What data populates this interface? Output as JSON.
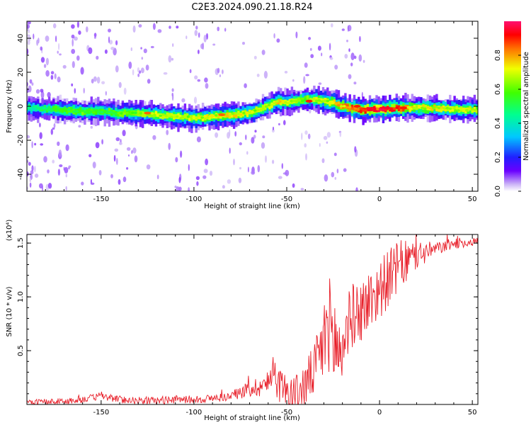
{
  "figure": {
    "title": "C2E3.2024.090.21.18.R24",
    "colors": {
      "snr_line": "#e8202a",
      "axis": "#000000"
    }
  },
  "chart_data": [
    {
      "type": "heatmap",
      "name": "spectrogram",
      "xlabel": "Height of straight line (km)",
      "ylabel": "Frequency (Hz)",
      "xlim": [
        -190,
        53
      ],
      "ylim": [
        -50,
        50
      ],
      "x_ticks": [
        -150,
        -100,
        -50,
        0,
        50
      ],
      "y_ticks": [
        -40,
        -20,
        0,
        20,
        40
      ],
      "colorbar": {
        "label": "Normalized spectral amplitude",
        "range": [
          0,
          1
        ],
        "ticks": [
          0.0,
          0.2,
          0.4,
          0.6,
          0.8
        ],
        "tick_labels": [
          "0.0",
          "0.2",
          "0.4",
          "0.6",
          "0.8"
        ]
      },
      "ridge": {
        "x": [
          -188,
          -175,
          -160,
          -150,
          -140,
          -130,
          -120,
          -110,
          -100,
          -90,
          -80,
          -70,
          -60,
          -55,
          -50,
          -45,
          -40,
          -35,
          -30,
          -25,
          -20,
          -10,
          0,
          10,
          20,
          30,
          40,
          53
        ],
        "y": [
          -1,
          -2,
          -3,
          -3,
          -4,
          -4,
          -5,
          -6,
          -7,
          -6,
          -5,
          -4,
          0,
          3,
          2,
          3,
          4,
          4,
          3,
          2,
          0,
          -2,
          -2,
          -1,
          -1,
          -1,
          -2,
          -2
        ],
        "amp": [
          0.45,
          0.55,
          0.6,
          0.55,
          0.6,
          0.65,
          0.7,
          0.68,
          0.7,
          0.72,
          0.75,
          0.7,
          0.7,
          0.75,
          0.72,
          0.65,
          0.6,
          0.7,
          0.7,
          0.75,
          0.8,
          0.9,
          0.95,
          0.9,
          0.7,
          0.75,
          0.7,
          0.7
        ]
      },
      "hotspots": [
        {
          "x": -125,
          "y": -4,
          "amp": 0.85
        },
        {
          "x": -85,
          "y": -5,
          "amp": 0.85
        },
        {
          "x": -12,
          "y": 0,
          "amp": 0.9
        },
        {
          "x": -5,
          "y": -2,
          "amp": 0.95
        },
        {
          "x": 4,
          "y": -1,
          "amp": 0.95
        },
        {
          "x": 13,
          "y": -1,
          "amp": 0.9
        },
        {
          "x": -38,
          "y": 3,
          "amp": 0.9
        }
      ]
    },
    {
      "type": "line",
      "name": "snr",
      "xlabel": "Height of straight line (km)",
      "ylabel": "SNR (10 * v/v)",
      "y_scale_label": "(x10⁴)",
      "xlim": [
        -190,
        53
      ],
      "ylim": [
        0,
        1.58
      ],
      "x_ticks": [
        -150,
        -100,
        -50,
        0,
        50
      ],
      "y_ticks": [
        0.5,
        1.0,
        1.5
      ],
      "y_tick_labels": [
        "0.5",
        "1.0",
        "1.5"
      ],
      "envelope": {
        "x": [
          -190,
          -170,
          -160,
          -150,
          -140,
          -130,
          -120,
          -110,
          -100,
          -90,
          -80,
          -75,
          -70,
          -65,
          -60,
          -57,
          -55,
          -50,
          -45,
          -40,
          -35,
          -30,
          -28,
          -25,
          -22,
          -20,
          -19,
          -15,
          -10,
          -5,
          0,
          5,
          10,
          15,
          20,
          30,
          40,
          53
        ],
        "y": [
          0.02,
          0.03,
          0.05,
          0.08,
          0.05,
          0.04,
          0.04,
          0.05,
          0.05,
          0.06,
          0.08,
          0.12,
          0.15,
          0.18,
          0.2,
          0.4,
          0.2,
          0.15,
          0.1,
          0.2,
          0.35,
          0.6,
          0.85,
          0.65,
          0.55,
          0.5,
          0.7,
          0.85,
          0.9,
          1.0,
          1.1,
          1.2,
          1.3,
          1.35,
          1.4,
          1.45,
          1.5,
          1.52
        ]
      },
      "noise_amplitude": {
        "x": [
          -190,
          -80,
          -65,
          -55,
          -35,
          -28,
          -20,
          -19,
          -5,
          10,
          20,
          30,
          53
        ],
        "y": [
          0.03,
          0.04,
          0.1,
          0.15,
          0.25,
          0.45,
          0.5,
          0.3,
          0.3,
          0.25,
          0.15,
          0.06,
          0.04
        ]
      }
    }
  ]
}
